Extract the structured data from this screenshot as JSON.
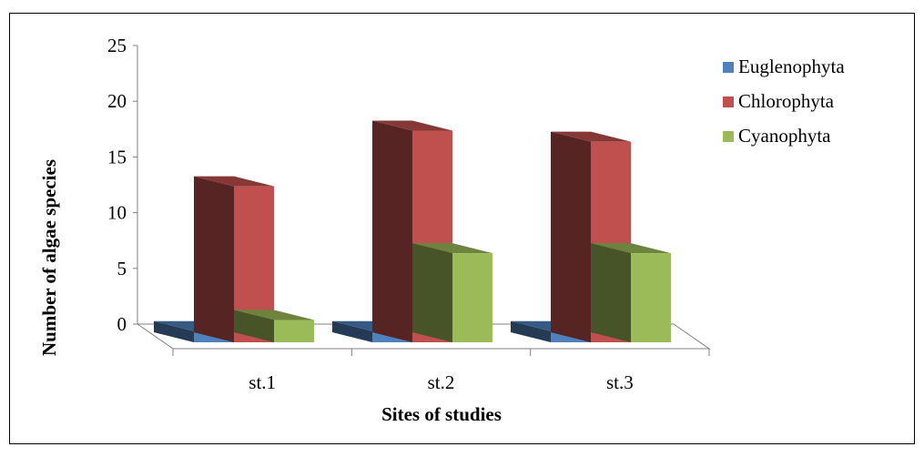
{
  "chart_data": {
    "type": "bar",
    "style": "3d-clustered-column",
    "title": "",
    "xlabel": "Sites of studies",
    "ylabel": "Number of algae species",
    "categories": [
      "st.1",
      "st.2",
      "st.3"
    ],
    "series": [
      {
        "name": "Euglenophyta",
        "values": [
          1,
          1,
          1
        ],
        "color": "#4f81bd"
      },
      {
        "name": "Chlorophyta",
        "values": [
          14,
          19,
          18
        ],
        "color": "#c0504d"
      },
      {
        "name": "Cyanophyta",
        "values": [
          2,
          8,
          8
        ],
        "color": "#9bbb59"
      }
    ],
    "ylim": [
      0,
      25
    ],
    "yticks": [
      "0",
      "5",
      "10",
      "15",
      "20",
      "25"
    ],
    "grid": false,
    "legend": "right"
  }
}
